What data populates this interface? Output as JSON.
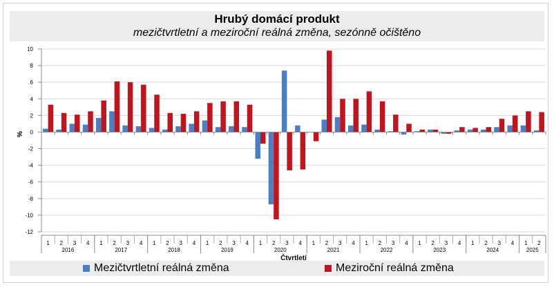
{
  "chart_data": {
    "type": "bar",
    "title": "Hrubý domácí produkt",
    "subtitle": "mezičtvrtletní a meziroční reálná změna, sezónně očištěno",
    "xlabel": "Čtvrtletí",
    "ylabel": "%",
    "ylim": [
      -12,
      10
    ],
    "yticks": [
      -12,
      -10,
      -8,
      -6,
      -4,
      -2,
      0,
      2,
      4,
      6,
      8,
      10
    ],
    "grid": true,
    "legend_position": "bottom",
    "quarters": [
      "1",
      "2",
      "3",
      "4",
      "1",
      "2",
      "3",
      "4",
      "1",
      "2",
      "3",
      "4",
      "1",
      "2",
      "3",
      "4",
      "1",
      "2",
      "3",
      "4",
      "1",
      "2",
      "3",
      "4",
      "1",
      "2",
      "3",
      "4",
      "1",
      "2",
      "3",
      "4",
      "1",
      "2",
      "3",
      "4",
      "1",
      "2"
    ],
    "years": [
      {
        "label": "2016",
        "quarters": 4
      },
      {
        "label": "2017",
        "quarters": 4
      },
      {
        "label": "2018",
        "quarters": 4
      },
      {
        "label": "2019",
        "quarters": 4
      },
      {
        "label": "2020",
        "quarters": 4
      },
      {
        "label": "2021",
        "quarters": 4
      },
      {
        "label": "2022",
        "quarters": 4
      },
      {
        "label": "2023",
        "quarters": 4
      },
      {
        "label": "2024",
        "quarters": 4
      },
      {
        "label": "2025",
        "quarters": 2
      }
    ],
    "series": [
      {
        "name": "Mezičtvrtletní reálná změna",
        "color": "#4a7fc4",
        "values": [
          0.4,
          0.3,
          1.0,
          0.9,
          1.7,
          2.5,
          0.8,
          0.7,
          0.5,
          0.3,
          0.7,
          1.0,
          1.4,
          0.6,
          0.7,
          0.6,
          -3.2,
          -8.7,
          7.4,
          0.8,
          0.0,
          1.5,
          1.8,
          0.8,
          0.9,
          0.3,
          0.1,
          -0.3,
          0.1,
          0.3,
          -0.2,
          0.2,
          0.3,
          0.3,
          0.6,
          0.8,
          0.8,
          0.2
        ]
      },
      {
        "name": "Meziroční reálná změna",
        "color": "#c0141e",
        "values": [
          3.3,
          2.3,
          2.1,
          2.5,
          3.8,
          6.1,
          6.0,
          5.7,
          4.5,
          2.3,
          2.2,
          2.5,
          3.5,
          3.7,
          3.7,
          3.3,
          -1.4,
          -10.5,
          -4.6,
          -4.5,
          -1.1,
          9.8,
          4.0,
          4.0,
          4.9,
          3.7,
          2.1,
          1.0,
          0.3,
          0.3,
          -0.2,
          0.6,
          0.5,
          0.6,
          1.6,
          2.0,
          2.5,
          2.4
        ]
      }
    ]
  }
}
